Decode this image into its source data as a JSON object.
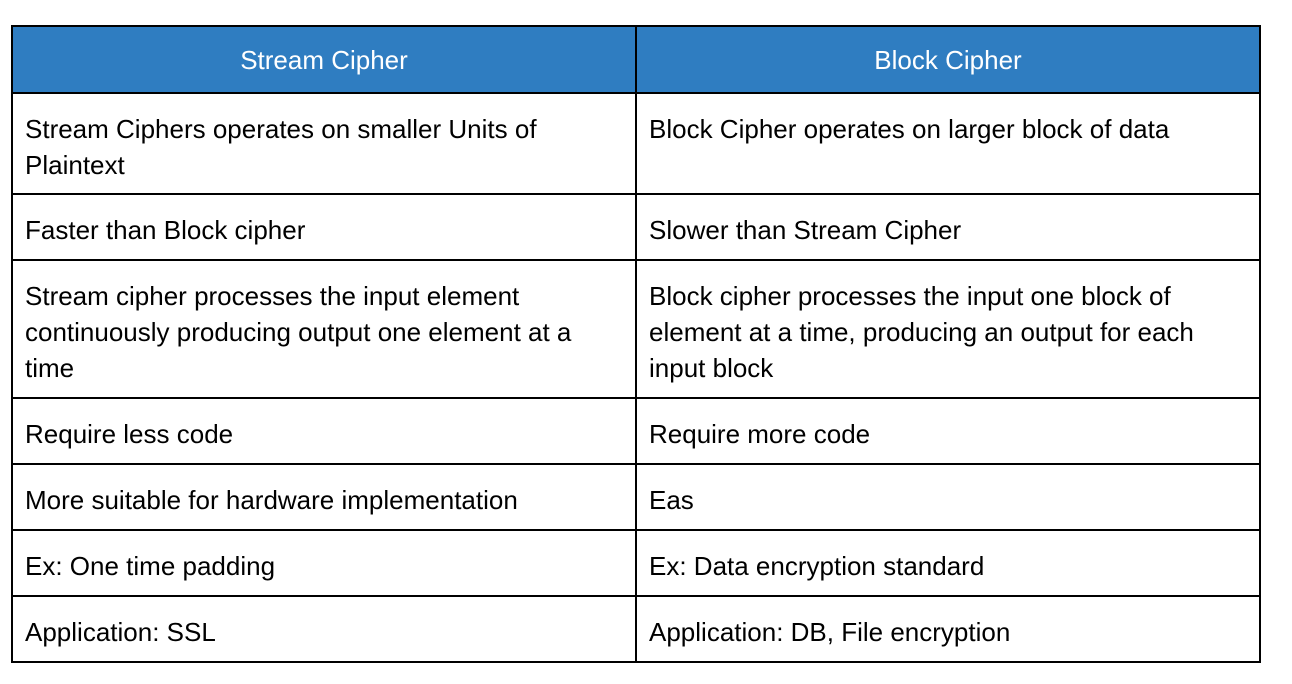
{
  "table": {
    "header": [
      "Stream Cipher",
      "Block Cipher"
    ],
    "rows": [
      [
        "Stream Ciphers operates on smaller Units of Plaintext",
        "Block Cipher operates on larger block of data"
      ],
      [
        "Faster than Block cipher",
        "Slower than Stream Cipher"
      ],
      [
        "Stream cipher processes the input element continuously producing output one element at a time",
        "Block cipher processes the input one block of element at a time, producing an output for each input block"
      ],
      [
        "Require less code",
        "Require more code"
      ],
      [
        "More suitable for hardware implementation",
        "Eas"
      ],
      [
        "Ex: One time padding",
        "Ex: Data encryption standard"
      ],
      [
        "Application: SSL",
        "Application: DB, File encryption"
      ]
    ]
  }
}
